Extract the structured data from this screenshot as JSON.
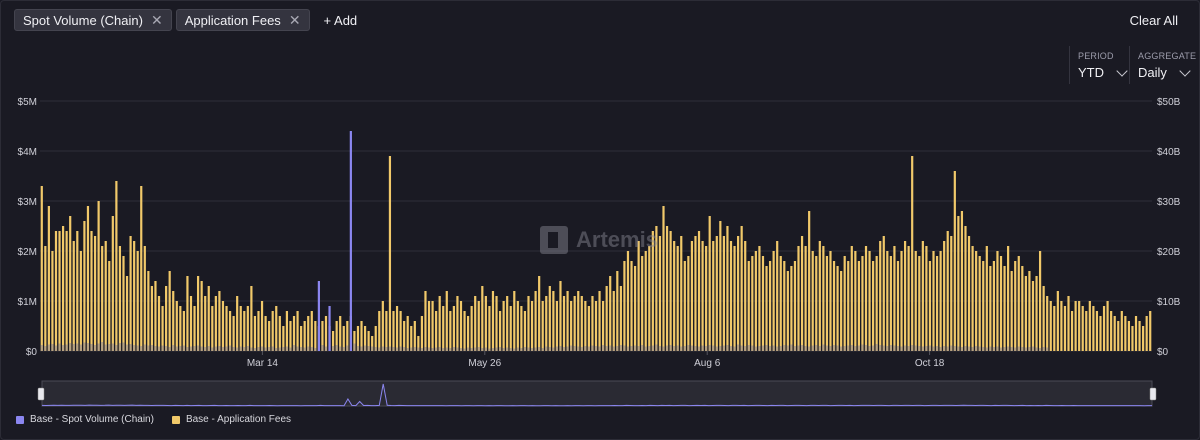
{
  "filters": {
    "chips": [
      {
        "label": "Spot Volume (Chain)"
      },
      {
        "label": "Application Fees"
      }
    ],
    "add_label": "+ Add",
    "clear_label": "Clear All"
  },
  "controls": {
    "period": {
      "label": "PERIOD",
      "value": "YTD"
    },
    "aggregate": {
      "label": "AGGREGATE",
      "value": "Daily"
    }
  },
  "watermark": "Artemis",
  "colors": {
    "fees": "#f1c96a",
    "volume": "#8b86f0",
    "grid": "#2f2f3a",
    "background": "#1a1a23"
  },
  "chart_data": {
    "type": "bar",
    "x_tick_labels": [
      "Mar 14",
      "May 26",
      "Aug 6",
      "Oct 18"
    ],
    "left_axis": {
      "ticks": [
        "$0",
        "$1M",
        "$2M",
        "$3M",
        "$4M",
        "$5M"
      ],
      "ylim": [
        0,
        5000000
      ]
    },
    "right_axis": {
      "ticks": [
        "$0",
        "$10B",
        "$20B",
        "$30B",
        "$40B",
        "$50B"
      ],
      "ylim": [
        0,
        50000000000
      ]
    },
    "legend": {
      "placement": "bottom-left"
    },
    "series": [
      {
        "name": "Base - Spot Volume (Chain)",
        "axis": "right",
        "values_billions": [
          1.2,
          1.0,
          1.3,
          1.4,
          1.1,
          1.5,
          1.2,
          1.3,
          1.6,
          1.4,
          1.5,
          1.3,
          1.7,
          1.6,
          1.4,
          1.2,
          1.5,
          1.8,
          1.3,
          1.4,
          1.5,
          1.2,
          1.6,
          1.7,
          1.3,
          1.4,
          1.2,
          1.1,
          1.0,
          1.3,
          1.1,
          1.2,
          1.0,
          0.9,
          1.1,
          1.0,
          0.8,
          1.2,
          0.9,
          1.0,
          1.1,
          0.8,
          0.9,
          1.0,
          1.1,
          0.9,
          0.8,
          1.0,
          0.7,
          0.9,
          1.0,
          0.8,
          0.9,
          1.1,
          0.8,
          0.7,
          0.9,
          0.8,
          1.0,
          0.7,
          0.6,
          0.8,
          0.9,
          0.7,
          0.8,
          0.9,
          0.6,
          0.7,
          0.8,
          0.9,
          0.7,
          1.2,
          0.9,
          0.8,
          0.7,
          0.9,
          0.8,
          0.6,
          14.0,
          1.2,
          0.9,
          9.0,
          1.0,
          1.2,
          0.9,
          0.8,
          1.1,
          44.0,
          1.5,
          1.0,
          0.9,
          1.1,
          1.0,
          0.9,
          0.8,
          0.7,
          0.9,
          0.8,
          0.9,
          0.8,
          0.7,
          0.9,
          0.8,
          0.6,
          0.7,
          0.8,
          0.7,
          0.6,
          0.8,
          0.7,
          0.6,
          0.7,
          0.8,
          0.6,
          0.7,
          0.6,
          0.8,
          0.7,
          0.6,
          0.5,
          0.7,
          0.6,
          0.7,
          0.8,
          0.6,
          0.7,
          0.5,
          0.6,
          0.7,
          0.8,
          0.6,
          0.7,
          0.6,
          0.5,
          0.7,
          0.6,
          0.8,
          0.7,
          0.6,
          0.7,
          0.8,
          0.6,
          0.9,
          0.8,
          0.7,
          0.9,
          1.0,
          0.8,
          0.9,
          1.1,
          1.0,
          0.9,
          0.8,
          1.0,
          0.9,
          1.1,
          1.0,
          0.9,
          1.2,
          1.0,
          1.1,
          0.9,
          1.0,
          1.2,
          1.1,
          0.9,
          1.0,
          1.1,
          1.0,
          1.2,
          0.9,
          1.0,
          1.1,
          1.3,
          1.0,
          0.9,
          1.1,
          1.2,
          1.0,
          1.1,
          0.9,
          1.0,
          1.2,
          1.1,
          1.0,
          0.9,
          1.1,
          1.0,
          1.2,
          1.1,
          0.9,
          1.0,
          1.1,
          1.2,
          1.0,
          0.9,
          1.3,
          1.1,
          1.0,
          1.2,
          1.1,
          0.9,
          1.0,
          1.1,
          1.2,
          1.0,
          1.1,
          0.9,
          1.0,
          1.2,
          1.1,
          1.3,
          1.0,
          1.1,
          1.2,
          1.0,
          0.9,
          1.1,
          1.2,
          1.0,
          1.3,
          1.1,
          1.0,
          1.2,
          1.1,
          0.9,
          1.0,
          1.1,
          1.2,
          1.0,
          1.1,
          1.3,
          1.2,
          1.0,
          1.1,
          1.4,
          1.2,
          1.1,
          1.0,
          1.2,
          1.1,
          1.0,
          0.9,
          1.1,
          1.0,
          1.2,
          1.1,
          1.0,
          0.9,
          1.0,
          1.1,
          0.9,
          1.0,
          0.8,
          1.0,
          0.9,
          1.1,
          1.0,
          0.9,
          0.8,
          1.0,
          0.9,
          0.8,
          1.0,
          0.9,
          0.8,
          0.7,
          0.9,
          0.8,
          0.9,
          0.7,
          0.8,
          0.9,
          0.8,
          0.7,
          0.9,
          0.8,
          0.7,
          0.8,
          0.9,
          0.7,
          0.6,
          0.8,
          0.7
        ]
      },
      {
        "name": "Base - Application Fees",
        "axis": "left",
        "values_millions": [
          3.3,
          2.1,
          2.9,
          2.0,
          2.4,
          2.4,
          2.5,
          2.4,
          2.7,
          2.2,
          2.4,
          2.0,
          2.6,
          2.9,
          2.4,
          2.3,
          3.0,
          2.1,
          2.2,
          1.8,
          2.7,
          3.4,
          2.1,
          1.9,
          1.5,
          2.3,
          2.2,
          2.0,
          3.3,
          2.1,
          1.6,
          1.3,
          1.4,
          1.1,
          0.9,
          1.3,
          1.6,
          1.2,
          1.0,
          0.9,
          0.8,
          1.5,
          1.1,
          0.9,
          1.5,
          1.4,
          1.1,
          1.3,
          0.9,
          1.1,
          1.2,
          1.0,
          0.9,
          0.8,
          0.7,
          1.1,
          0.9,
          0.8,
          0.9,
          1.3,
          0.7,
          0.8,
          1.0,
          0.7,
          0.6,
          0.8,
          0.9,
          0.7,
          0.5,
          0.8,
          0.6,
          0.7,
          0.8,
          0.5,
          0.6,
          0.7,
          0.8,
          0.6,
          0.5,
          0.6,
          0.7,
          0.5,
          0.4,
          0.6,
          0.7,
          0.5,
          0.6,
          0.7,
          0.4,
          0.5,
          0.6,
          0.5,
          0.4,
          0.3,
          0.5,
          0.8,
          1.0,
          0.8,
          3.9,
          0.8,
          0.9,
          0.8,
          0.6,
          0.7,
          0.5,
          0.6,
          0.3,
          0.7,
          1.2,
          1.0,
          1.0,
          0.8,
          1.1,
          0.9,
          1.2,
          0.8,
          0.9,
          1.1,
          1.0,
          0.8,
          0.7,
          0.9,
          1.1,
          1.0,
          1.3,
          1.1,
          0.9,
          1.2,
          1.1,
          0.8,
          1.0,
          1.1,
          0.9,
          1.2,
          1.0,
          0.9,
          0.8,
          1.1,
          1.0,
          1.2,
          1.5,
          1.0,
          1.1,
          1.3,
          1.2,
          1.0,
          1.4,
          1.1,
          1.2,
          1.0,
          1.1,
          1.2,
          1.1,
          1.0,
          0.9,
          1.1,
          1.0,
          1.2,
          1.0,
          1.3,
          1.5,
          1.2,
          1.6,
          1.3,
          1.8,
          2.0,
          1.8,
          1.7,
          2.2,
          1.9,
          2.0,
          2.1,
          2.4,
          2.5,
          2.3,
          2.9,
          2.5,
          2.4,
          2.2,
          2.1,
          2.3,
          1.8,
          1.9,
          2.2,
          2.3,
          2.4,
          2.2,
          2.1,
          2.7,
          2.2,
          2.3,
          2.6,
          2.3,
          2.5,
          2.2,
          2.1,
          2.3,
          2.5,
          2.2,
          1.8,
          1.9,
          2.0,
          2.1,
          1.9,
          1.7,
          1.8,
          2.0,
          2.2,
          1.9,
          1.8,
          1.6,
          1.7,
          1.8,
          2.1,
          2.3,
          2.1,
          2.8,
          2.0,
          1.9,
          2.2,
          2.1,
          1.9,
          2.0,
          1.8,
          1.7,
          1.6,
          1.9,
          1.8,
          2.1,
          2.0,
          1.8,
          1.9,
          2.1,
          2.0,
          1.8,
          1.9,
          2.2,
          2.3,
          2.0,
          1.9,
          2.1,
          1.8,
          2.0,
          2.2,
          2.1,
          3.9,
          2.0,
          1.9,
          2.2,
          2.1,
          1.8,
          2.0,
          1.9,
          2.0,
          2.2,
          2.4,
          2.3,
          3.6,
          2.7,
          2.8,
          2.5,
          2.3,
          2.1,
          2.0,
          1.9,
          1.8,
          2.1,
          1.7,
          1.8,
          2.0,
          1.9,
          1.7,
          2.1,
          1.6,
          1.8,
          1.9,
          1.7,
          1.5,
          1.6,
          1.4,
          1.5,
          2.0,
          1.3,
          1.1,
          1.0,
          0.9,
          1.2,
          1.0,
          0.9,
          1.1,
          0.8,
          1.0,
          1.0,
          0.9,
          0.8,
          1.0,
          0.9,
          0.8,
          0.7,
          0.9,
          1.0,
          0.8,
          0.7,
          0.6,
          0.8,
          0.7,
          0.6,
          0.5,
          0.7,
          0.6,
          0.5,
          0.7,
          0.8
        ]
      }
    ]
  }
}
